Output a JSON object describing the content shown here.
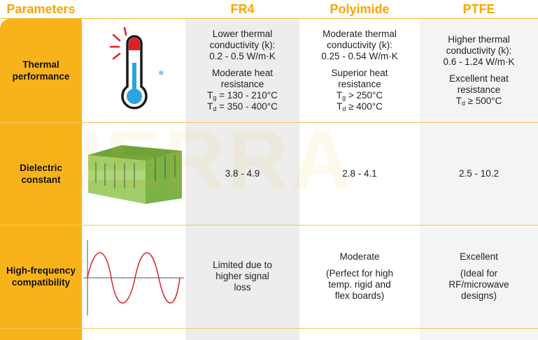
{
  "watermark": "NERRA",
  "header": [
    "Parameters",
    "FR4",
    "Polyimide",
    "PTFE"
  ],
  "rows": [
    {
      "label": "Thermal performance",
      "cells": [
        [
          [
            "Lower thermal",
            "conductivity (k):",
            "0.2 - 0.5 W/m·K"
          ],
          [
            "Moderate heat",
            "resistance",
            {
              "base": "T",
              "sub": "g",
              "rest": " = 130 - 210°C"
            },
            {
              "base": "T",
              "sub": "d",
              "rest": " = 350 - 400°C"
            }
          ]
        ],
        [
          [
            "Moderate thermal",
            "conductivity (k):",
            "0.25 - 0.54 W/m·K"
          ],
          [
            "Superior heat",
            "resistance",
            {
              "base": "T",
              "sub": "g",
              "rest": " > 250°C"
            },
            {
              "base": "T",
              "sub": "d",
              "rest": " ≥ 400°C"
            }
          ]
        ],
        [
          [
            "Higher thermal",
            "conductivity (k):",
            "0.6 - 1.24 W/m·K"
          ],
          [
            "Excellent heat",
            "resistance",
            {
              "base": "T",
              "sub": "d",
              "rest": " ≥ 500°C"
            }
          ]
        ]
      ]
    },
    {
      "label": "Dielectric constant",
      "cells": [
        [
          [
            "3.8 - 4.9"
          ]
        ],
        [
          [
            "2.8 - 4.1"
          ]
        ],
        [
          [
            "2.5 - 10.2"
          ]
        ]
      ]
    },
    {
      "label": "High-frequency compatibility",
      "cells": [
        [
          [
            "Limited due to",
            "higher signal",
            "loss"
          ]
        ],
        [
          [
            "Moderate"
          ],
          [
            "(Perfect for high",
            "temp. rigid and",
            "flex boards)"
          ]
        ],
        [
          [
            "Excellent"
          ],
          [
            "(Ideal for",
            "RF/microwave",
            "designs)"
          ]
        ]
      ]
    }
  ]
}
